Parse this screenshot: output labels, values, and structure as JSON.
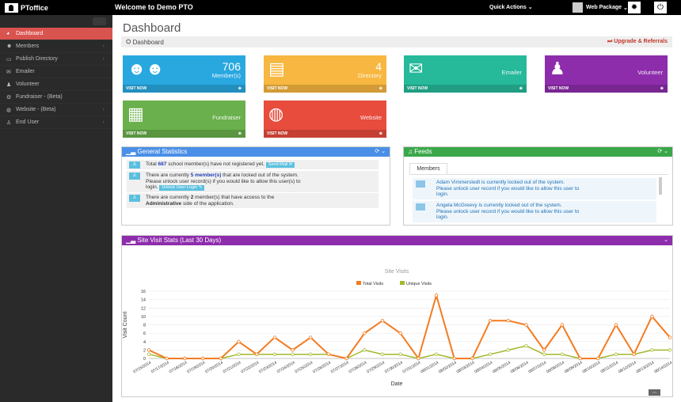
{
  "topbar": {
    "logo_text": "PToffice",
    "welcome": "Welcome to Demo PTO",
    "quick_actions": "Quick Actions",
    "web_package": "Web Package"
  },
  "sidebar": {
    "items": [
      {
        "label": "Dashboard",
        "icon": "dashboard-icon",
        "chev": ""
      },
      {
        "label": "Members",
        "icon": "members-icon",
        "chev": "‹"
      },
      {
        "label": "Publish Directory",
        "icon": "monitor-icon",
        "chev": "‹"
      },
      {
        "label": "Emailer",
        "icon": "envelope-icon",
        "chev": ""
      },
      {
        "label": "Volunteer",
        "icon": "person-icon",
        "chev": ""
      },
      {
        "label": "Fundraiser - (Beta)",
        "icon": "car-icon",
        "chev": ""
      },
      {
        "label": "Website - (Beta)",
        "icon": "globe-icon",
        "chev": "‹"
      },
      {
        "label": "End User",
        "icon": "user-icon",
        "chev": "‹"
      }
    ]
  },
  "main": {
    "title": "Dashboard",
    "breadcrumb": "Dashboard",
    "upgrade": "Upgrade & Referrals",
    "visit_now": "VISIT NOW",
    "tiles": [
      {
        "value": "706",
        "label": "Member(s)",
        "color": "#29a8e0"
      },
      {
        "value": "4",
        "label": "Directory",
        "color": "#f7b740"
      },
      {
        "value": "",
        "label": "Emailer",
        "color": "#26b99a"
      },
      {
        "value": "",
        "label": "Volunteer",
        "color": "#8e2dac"
      },
      {
        "value": "",
        "label": "Fundraiser",
        "color": "#6ab04c"
      },
      {
        "value": "",
        "label": "Website",
        "color": "#e74c3c"
      }
    ]
  },
  "stats": {
    "title": "General Statistics",
    "row1": {
      "a": "Total ",
      "count": "687",
      "b": " school member(s) have not registered yet. ",
      "btn": "Send Mail"
    },
    "row2": {
      "a": "There are currently ",
      "count": "5 member(s)",
      "b": " that are locked out of the system.",
      "c": "Please unlock user record(s) if you would like to allow this user(s) to",
      "d": "login. ",
      "btn": "Unlock User Login"
    },
    "row3": {
      "a": "There are currently ",
      "count": "2",
      "b": " member(s) that have access to the",
      "c": "Administrative",
      "d": " side of the application."
    }
  },
  "feeds": {
    "title": "Feeds",
    "tab": "Members",
    "items": [
      {
        "line1": "Adam Vimmerstedt is currently locked out of the system.",
        "line2": "Please unlock user record if you would like to allow this user to",
        "line3": "login."
      },
      {
        "line1": "Angela McGreevy is currently locked out of the system.",
        "line2": "Please unlock user record if you would like to allow this user to",
        "line3": "login."
      }
    ]
  },
  "visits_panel": {
    "title": "Site Visit Stats (Last 30 Days)"
  },
  "chart_data": {
    "type": "line",
    "title": "Site Visits",
    "xlabel": "Date",
    "ylabel": "Visit Count",
    "ylim": [
      0,
      16
    ],
    "yticks": [
      0,
      2,
      4,
      6,
      8,
      10,
      12,
      14,
      16
    ],
    "legend": "top-center",
    "categories": [
      "07/15/2014",
      "07/17/2014",
      "07/18/2014",
      "07/19/2014",
      "07/20/2014",
      "07/21/2014",
      "07/22/2014",
      "07/23/2014",
      "07/24/2014",
      "07/25/2014",
      "07/26/2014",
      "07/27/2014",
      "07/28/2014",
      "07/29/2014",
      "07/30/2014",
      "07/31/2014",
      "08/01/2014",
      "08/02/2014",
      "08/03/2014",
      "08/04/2014",
      "08/05/2014",
      "08/06/2014",
      "08/07/2014",
      "08/08/2014",
      "08/09/2014",
      "08/10/2014",
      "08/11/2014",
      "08/12/2014",
      "08/13/2014",
      "08/14/2014"
    ],
    "series": [
      {
        "name": "Total Visits",
        "color": "#f47b20",
        "values": [
          2,
          0,
          0,
          0,
          0,
          4,
          1,
          5,
          2,
          5,
          1,
          0,
          6,
          9,
          6,
          0,
          15,
          0,
          0,
          9,
          9,
          8,
          2,
          8,
          0,
          0,
          8,
          1,
          10,
          5
        ]
      },
      {
        "name": "Unique Visits",
        "color": "#a3b82a",
        "values": [
          1,
          0,
          0,
          0,
          0,
          1,
          1,
          1,
          1,
          1,
          1,
          0,
          2,
          1,
          1,
          0,
          1,
          0,
          0,
          1,
          2,
          3,
          1,
          1,
          0,
          0,
          1,
          1,
          2,
          2
        ]
      }
    ]
  }
}
